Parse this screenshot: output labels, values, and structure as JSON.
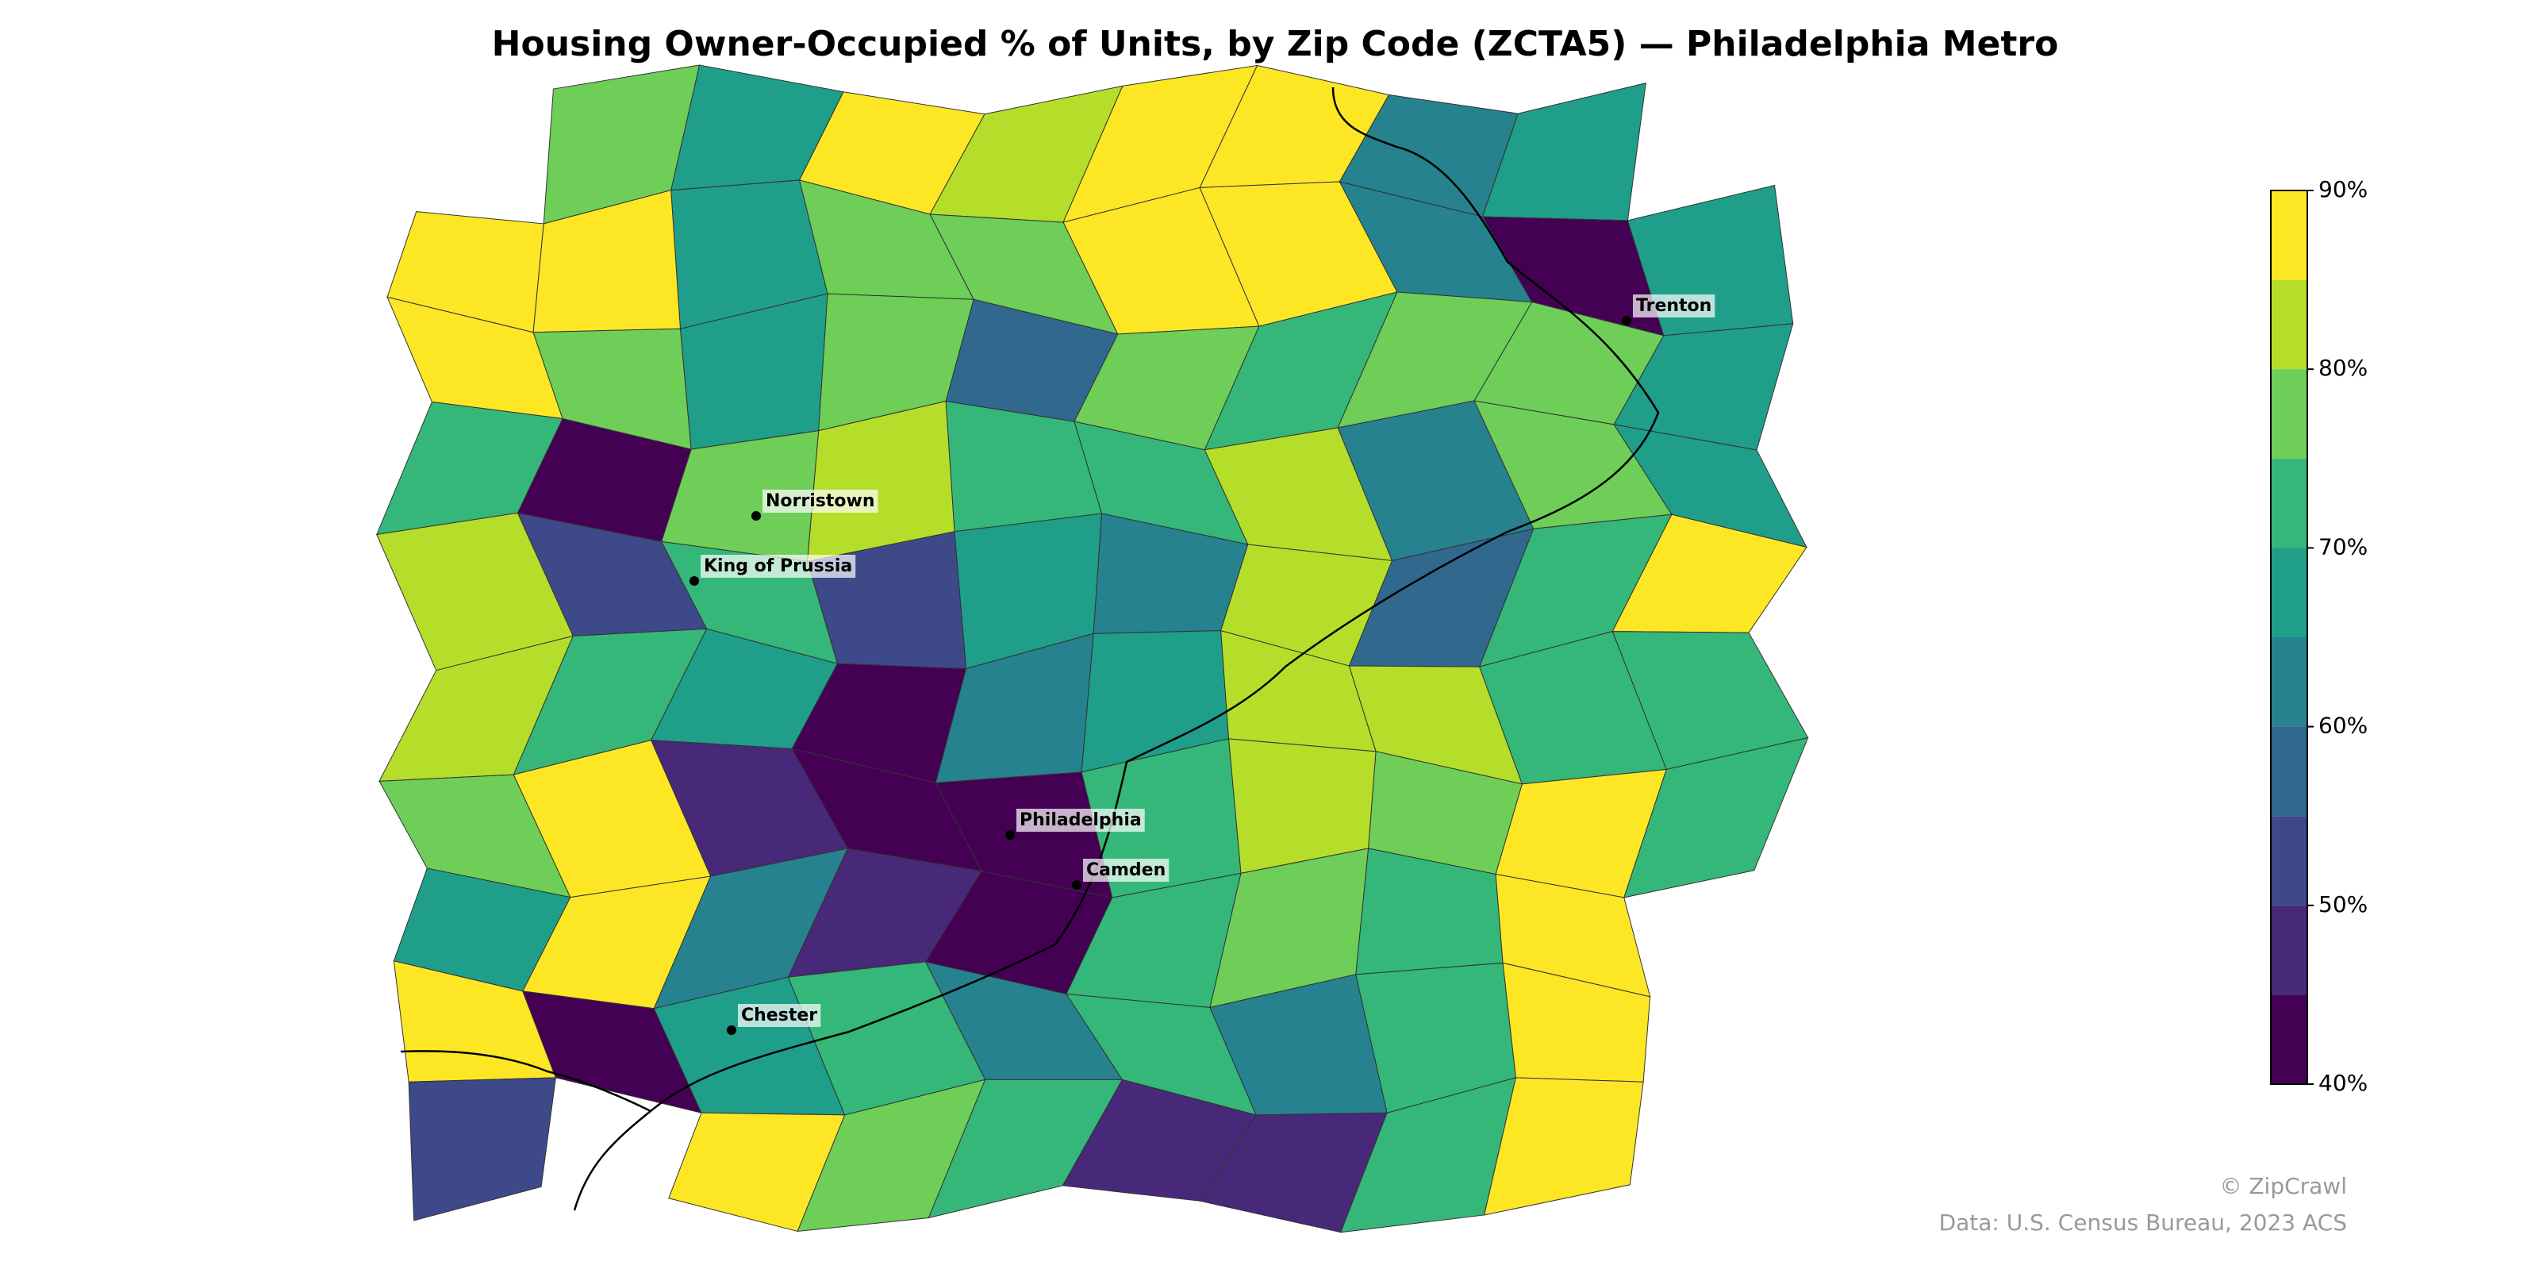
{
  "chart_data": {
    "type": "choropleth",
    "title": "Housing Owner-Occupied % of Units, by Zip Code (ZCTA5) — Philadelphia Metro",
    "values": [
      [
        null,
        78,
        65,
        90,
        82,
        90,
        90,
        62,
        68,
        null
      ],
      [
        90,
        90,
        68,
        75,
        78,
        90,
        90,
        62,
        42,
        68
      ],
      [
        90,
        75,
        68,
        77,
        58,
        75,
        72,
        75,
        78,
        68
      ],
      [
        72,
        42,
        78,
        82,
        72,
        70,
        82,
        60,
        77,
        68
      ],
      [
        82,
        52,
        72,
        52,
        65,
        60,
        82,
        58,
        72,
        90
      ],
      [
        82,
        72,
        68,
        42,
        62,
        65,
        82,
        83,
        72,
        72
      ],
      [
        78,
        90,
        48,
        42,
        44,
        72,
        82,
        78,
        90,
        72
      ],
      [
        68,
        88,
        62,
        48,
        42,
        72,
        78,
        72,
        90,
        null
      ],
      [
        90,
        42,
        65,
        72,
        62,
        70,
        62,
        72,
        90,
        null
      ],
      [
        52,
        null,
        90,
        78,
        72,
        48,
        48,
        72,
        90,
        null
      ]
    ],
    "colorbar": {
      "bins": [
        40,
        45,
        50,
        55,
        60,
        65,
        70,
        75,
        80,
        85,
        90
      ],
      "colors": [
        "#440154",
        "#482878",
        "#3e4989",
        "#31688e",
        "#26828e",
        "#1f9e89",
        "#35b779",
        "#6ece58",
        "#b5de2b",
        "#fde725"
      ],
      "lim": [
        40,
        90
      ],
      "ticks": [
        {
          "value": 40,
          "label": "40%"
        },
        {
          "value": 50,
          "label": "50%"
        },
        {
          "value": 60,
          "label": "60%"
        },
        {
          "value": 70,
          "label": "70%"
        },
        {
          "value": 80,
          "label": "80%"
        },
        {
          "value": 90,
          "label": "90%"
        }
      ]
    },
    "cities": [
      "Norristown",
      "King of Prussia",
      "Philadelphia",
      "Camden",
      "Chester",
      "Trenton"
    ],
    "credit": "© ZipCrawl",
    "source": "Data: U.S. Census Bureau, 2023 ACS"
  }
}
